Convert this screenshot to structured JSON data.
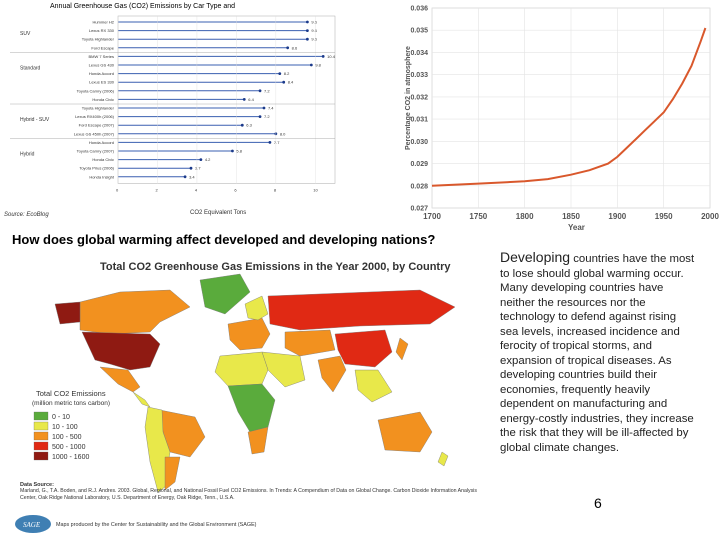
{
  "car_chart": {
    "title": "Annual Greenhouse Gas (CO2) Emissions by Car Type and",
    "xlabel": "CO2 Equivalent Tons",
    "ticks": [
      "0",
      "2",
      "4",
      "6",
      "8",
      "10"
    ],
    "groups": [
      "SUV",
      "Standard",
      "Hybrid - SUV",
      "Hybrid"
    ],
    "source": "Source: EcoBlog",
    "models": [
      {
        "label": "Hummer H2",
        "value": 9.6
      },
      {
        "label": "Lexus RX 330",
        "value": 9.6
      },
      {
        "label": "Toyota Highlander",
        "value": 9.6
      },
      {
        "label": "Ford Escape",
        "value": 8.6
      },
      {
        "label": "BMW 7 Series",
        "value": 10.4
      },
      {
        "label": "Lexus GS 430",
        "value": 9.8
      },
      {
        "label": "Honda Accord",
        "value": 8.2
      },
      {
        "label": "Lexus ES 330",
        "value": 8.4
      },
      {
        "label": "Toyota Camry (2006)",
        "value": 7.2
      },
      {
        "label": "Honda Civic",
        "value": 6.4
      },
      {
        "label": "Toyota Highlander",
        "value": 7.4
      },
      {
        "label": "Lexus RX400h (2006)",
        "value": 7.2
      },
      {
        "label": "Ford Escape (2007)",
        "value": 6.3
      },
      {
        "label": "Lexus GS 450h (2007)",
        "value": 8.0
      },
      {
        "label": "Honda Accord",
        "value": 7.7
      },
      {
        "label": "Toyota Camry (2007)",
        "value": 5.8
      },
      {
        "label": "Honda Civic",
        "value": 4.2
      },
      {
        "label": "Toyota Prius (2006)",
        "value": 3.7
      },
      {
        "label": "Honda Insight",
        "value": 3.4
      }
    ]
  },
  "chart_data": {
    "type": "line",
    "title": "",
    "xlabel": "Year",
    "ylabel": "Percentage CO2 in atmosphere",
    "xlim": [
      1700,
      2000
    ],
    "ylim": [
      0.027,
      0.036
    ],
    "x_ticks": [
      "1700",
      "1750",
      "1800",
      "1850",
      "1900",
      "1950",
      "2000"
    ],
    "y_ticks": [
      "0.027",
      "0.028",
      "0.029",
      "0.030",
      "0.031",
      "0.032",
      "0.033",
      "0.034",
      "0.035",
      "0.036"
    ],
    "grid": true,
    "color": "#d9582c",
    "x": [
      1700,
      1750,
      1800,
      1825,
      1850,
      1870,
      1890,
      1900,
      1910,
      1920,
      1930,
      1940,
      1950,
      1960,
      1970,
      1980,
      1990,
      1995
    ],
    "y": [
      0.028,
      0.0281,
      0.0282,
      0.0283,
      0.0285,
      0.0287,
      0.029,
      0.0293,
      0.0297,
      0.0301,
      0.0305,
      0.0309,
      0.0313,
      0.0319,
      0.0326,
      0.0334,
      0.0345,
      0.0351
    ]
  },
  "question": "How does global warming affect developed and developing nations?",
  "map": {
    "title": "Total CO2 Greenhouse Gas Emissions in the Year 2000, by Country",
    "legend_title": "Total CO2 Emissions",
    "legend_subtitle": "(million metric tons carbon)",
    "legend": [
      {
        "label": "0 - 10",
        "color": "#5aab3c"
      },
      {
        "label": "10 - 100",
        "color": "#e8e84a"
      },
      {
        "label": "100 - 500",
        "color": "#f2911f"
      },
      {
        "label": "500 - 1000",
        "color": "#e02914"
      },
      {
        "label": "1000 - 1600",
        "color": "#8f1a12"
      }
    ],
    "data_source_heading": "Data Source:",
    "data_source": "Marland, G., T.A. Boden, and R.J. Andres. 2003. Global, Regional, and National Fossil Fuel CO2 Emissions. In Trends: A Compendium of Data on Global Change. Carbon Dioxide Information Analysis Center, Oak Ridge National Laboratory, U.S. Department of Energy, Oak Ridge, Tenn., U.S.A.",
    "credit": "Maps produced by the Center for Sustainability and the Global Environment (SAGE)",
    "logo_text": "SAGE"
  },
  "body": {
    "lead": "Developing",
    "text": " countries have the most to lose should global warming occur. Many developing countries have neither the resources nor the technology to defend against rising sea levels, increased incidence and ferocity of tropical storms, and expansion of tropical diseases. As developing countries build their economies, frequently heavily dependent on manufacturing and energy-costly industries, they increase the risk that they will be ill-affected by global climate changes."
  },
  "page_number": "6"
}
